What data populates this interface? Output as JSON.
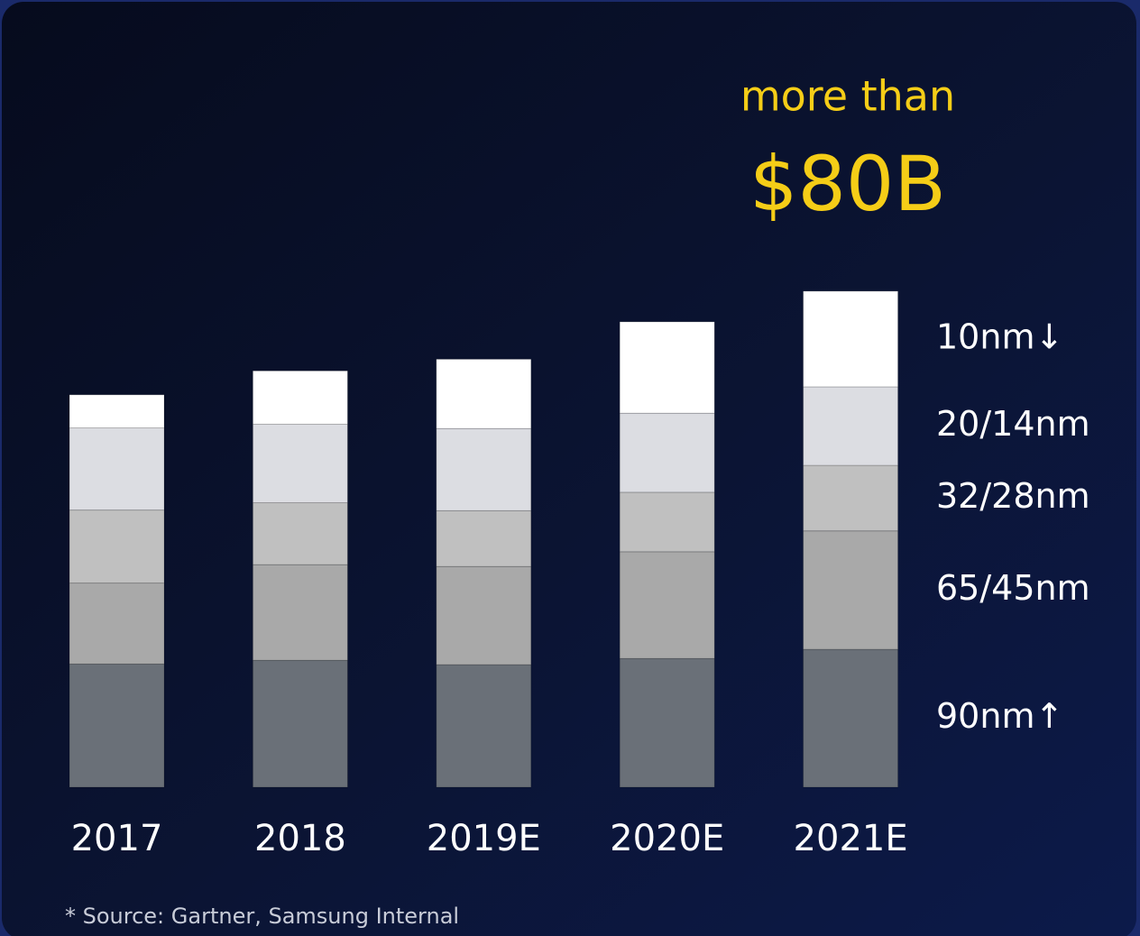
{
  "chart_data": {
    "type": "stacked_bar",
    "annotations": [
      "more than",
      "$80B"
    ],
    "footnote": "* Source: Gartner, Samsung Internal",
    "categories": [
      "2017",
      "2018",
      "2019E",
      "2020E",
      "2021E"
    ],
    "ylim": [
      0,
      90
    ],
    "series": [
      {
        "name": "90nm↑",
        "color": "#6a7078",
        "values": [
          20.1,
          20.7,
          20.0,
          21.0,
          22.5
        ]
      },
      {
        "name": "65/45nm",
        "color": "#a9a9a9",
        "values": [
          13.2,
          15.6,
          16.0,
          17.4,
          19.3
        ]
      },
      {
        "name": "32/28nm",
        "color": "#c0c0c0",
        "values": [
          11.9,
          10.1,
          9.1,
          9.7,
          10.7
        ]
      },
      {
        "name": "20/14nm",
        "color": "#dcdde2",
        "values": [
          13.4,
          12.8,
          13.4,
          12.9,
          12.8
        ]
      },
      {
        "name": "10nm↓",
        "color": "#ffffff",
        "values": [
          5.4,
          8.7,
          11.3,
          14.9,
          15.6
        ]
      }
    ]
  }
}
